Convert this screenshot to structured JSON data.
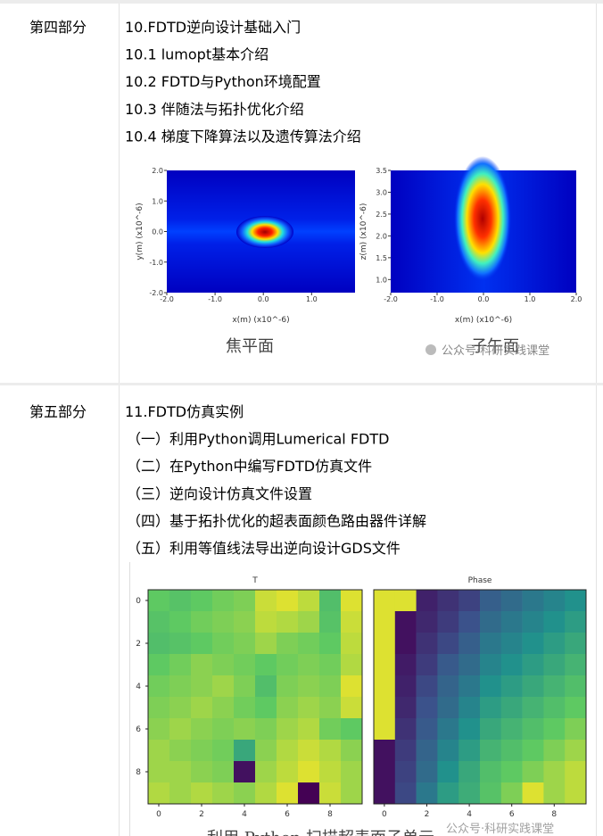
{
  "rows": [
    {
      "label": "第四部分",
      "items": [
        "10.FDTD逆向设计基础入门",
        "10.1 lumopt基本介绍",
        "10.2 FDTD与Python环境配置",
        "10.3 伴随法与拓扑优化介绍",
        "10.4 梯度下降算法以及遗传算法介绍"
      ],
      "figure": {
        "panels": [
          {
            "xlabel": "x(m) (x10^-6)",
            "ylabel": "y(m) (x10^-6)",
            "xlim": [
              -2,
              1.9
            ],
            "ylim": [
              -2,
              2
            ],
            "xticks": [
              {
                "value": -2,
                "label": "-2.0"
              },
              {
                "value": -1,
                "label": "-1.0"
              },
              {
                "value": 0,
                "label": "0.0"
              },
              {
                "value": 1,
                "label": "1.0"
              }
            ],
            "yticks": [
              {
                "value": 2,
                "label": "2.0"
              },
              {
                "value": 1,
                "label": "1.0"
              },
              {
                "value": 0,
                "label": "0.0"
              },
              {
                "value": -1,
                "label": "-1.0"
              },
              {
                "value": -2,
                "label": "-2.0"
              }
            ],
            "caption": "焦平面"
          },
          {
            "xlabel": "x(m) (x10^-6)",
            "ylabel": "z(m) (x10^-6)",
            "xlim": [
              -2,
              2
            ],
            "ylim": [
              0.7,
              3.5
            ],
            "xticks": [
              {
                "value": -2,
                "label": "-2.0"
              },
              {
                "value": -1,
                "label": "-1.0"
              },
              {
                "value": 0,
                "label": "0.0"
              },
              {
                "value": 1,
                "label": "1.0"
              },
              {
                "value": 2,
                "label": "2.0"
              }
            ],
            "yticks": [
              3.5,
              {
                "value": 3,
                "label": "3.0"
              },
              2.5,
              {
                "value": 2,
                "label": "2.0"
              },
              1.5,
              {
                "value": 1,
                "label": "1.0"
              }
            ],
            "caption": "子午面"
          }
        ],
        "watermark": "公众号·科研实践课堂"
      }
    },
    {
      "label": "第五部分",
      "items": [
        "11.FDTD仿真实例",
        "（一）利用Python调用Lumerical FDTD",
        "（二）在Python中编写FDTD仿真文件",
        "（三）逆向设计仿真文件设置",
        "（四）基于拓扑优化的超表面颜色路由器件详解",
        "（五）利用等值线法导出逆向设计GDS文件"
      ],
      "figure": {
        "panels": [
          {
            "title": "T",
            "xlim": [
              -0.5,
              9.5
            ],
            "ylim": [
              -0.5,
              9.5
            ],
            "xticks": [
              0,
              2,
              4,
              6,
              8
            ],
            "yticks": [
              0,
              2,
              4,
              6,
              8
            ],
            "cells": [
              [
                0.75,
                0.72,
                0.75,
                0.78,
                0.8,
                0.92,
                0.95,
                0.9,
                0.7,
                0.95
              ],
              [
                0.72,
                0.75,
                0.78,
                0.8,
                0.82,
                0.9,
                0.88,
                0.85,
                0.72,
                0.92
              ],
              [
                0.7,
                0.72,
                0.75,
                0.78,
                0.8,
                0.85,
                0.8,
                0.78,
                0.75,
                0.9
              ],
              [
                0.75,
                0.78,
                0.82,
                0.8,
                0.78,
                0.75,
                0.78,
                0.8,
                0.78,
                0.88
              ],
              [
                0.78,
                0.8,
                0.82,
                0.85,
                0.8,
                0.7,
                0.8,
                0.82,
                0.8,
                0.95
              ],
              [
                0.8,
                0.82,
                0.85,
                0.82,
                0.78,
                0.75,
                0.82,
                0.85,
                0.82,
                0.92
              ],
              [
                0.82,
                0.85,
                0.82,
                0.8,
                0.82,
                0.8,
                0.85,
                0.88,
                0.78,
                0.75
              ],
              [
                0.85,
                0.82,
                0.8,
                0.78,
                0.6,
                0.82,
                0.88,
                0.92,
                0.88,
                0.82
              ],
              [
                0.85,
                0.85,
                0.82,
                0.8,
                0.05,
                0.85,
                0.9,
                0.95,
                0.9,
                0.85
              ],
              [
                0.88,
                0.85,
                0.88,
                0.85,
                0.82,
                0.88,
                0.95,
                0.0,
                0.92,
                0.85
              ]
            ]
          },
          {
            "title": "Phase",
            "xlim": [
              -0.5,
              9.5
            ],
            "ylim": [
              -0.5,
              9.5
            ],
            "xticks": [
              0,
              2,
              4,
              6,
              8
            ],
            "cells": [
              [
                0.95,
                0.95,
                0.1,
                0.15,
                0.2,
                0.3,
                0.35,
                0.4,
                0.45,
                0.5
              ],
              [
                0.95,
                0.05,
                0.12,
                0.18,
                0.25,
                0.35,
                0.4,
                0.45,
                0.5,
                0.55
              ],
              [
                0.95,
                0.05,
                0.15,
                0.22,
                0.3,
                0.4,
                0.45,
                0.5,
                0.55,
                0.6
              ],
              [
                0.95,
                0.08,
                0.18,
                0.28,
                0.35,
                0.45,
                0.5,
                0.55,
                0.6,
                0.65
              ],
              [
                0.95,
                0.1,
                0.22,
                0.32,
                0.4,
                0.5,
                0.55,
                0.6,
                0.65,
                0.7
              ],
              [
                0.95,
                0.12,
                0.25,
                0.35,
                0.45,
                0.55,
                0.6,
                0.65,
                0.7,
                0.75
              ],
              [
                0.95,
                0.15,
                0.28,
                0.4,
                0.5,
                0.6,
                0.65,
                0.7,
                0.75,
                0.8
              ],
              [
                0.05,
                0.18,
                0.32,
                0.45,
                0.55,
                0.65,
                0.7,
                0.75,
                0.8,
                0.85
              ],
              [
                0.05,
                0.2,
                0.35,
                0.5,
                0.6,
                0.7,
                0.75,
                0.8,
                0.85,
                0.9
              ],
              [
                0.05,
                0.22,
                0.4,
                0.55,
                0.62,
                0.72,
                0.8,
                0.95,
                0.85,
                0.9
              ]
            ]
          }
        ],
        "caption": "利用 Python 扫描超表面子单元",
        "watermark": "公众号·科研实践课堂"
      }
    }
  ]
}
